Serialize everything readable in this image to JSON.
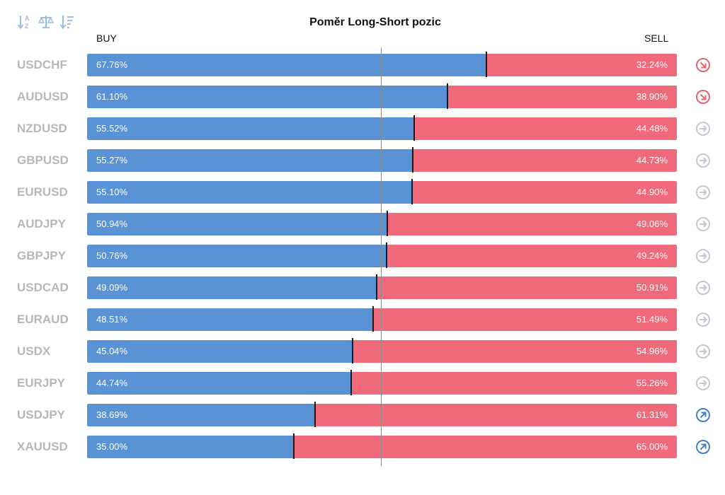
{
  "toolbar": {
    "buttons": [
      {
        "name": "sort-alphabetical-icon"
      },
      {
        "name": "balance-scale-icon"
      },
      {
        "name": "sort-descending-icon"
      }
    ]
  },
  "title": "Poměr Long-Short pozic",
  "buy_label": "BUY",
  "sell_label": "SELL",
  "colors": {
    "buy": "#5a93d5",
    "sell": "#f06a7b",
    "signal_down": "#e8616f",
    "signal_neutral": "#c2c8d0",
    "signal_up": "#3f7fc7",
    "symbol_text": "#b7b7b7"
  },
  "rows": [
    {
      "symbol": "USDCHF",
      "buy": "67.76%",
      "sell": "32.24%",
      "signal": "down"
    },
    {
      "symbol": "AUDUSD",
      "buy": "61.10%",
      "sell": "38.90%",
      "signal": "down"
    },
    {
      "symbol": "NZDUSD",
      "buy": "55.52%",
      "sell": "44.48%",
      "signal": "neutral"
    },
    {
      "symbol": "GBPUSD",
      "buy": "55.27%",
      "sell": "44.73%",
      "signal": "neutral"
    },
    {
      "symbol": "EURUSD",
      "buy": "55.10%",
      "sell": "44.90%",
      "signal": "neutral"
    },
    {
      "symbol": "AUDJPY",
      "buy": "50.94%",
      "sell": "49.06%",
      "signal": "neutral"
    },
    {
      "symbol": "GBPJPY",
      "buy": "50.76%",
      "sell": "49.24%",
      "signal": "neutral"
    },
    {
      "symbol": "USDCAD",
      "buy": "49.09%",
      "sell": "50.91%",
      "signal": "neutral"
    },
    {
      "symbol": "EURAUD",
      "buy": "48.51%",
      "sell": "51.49%",
      "signal": "neutral"
    },
    {
      "symbol": "USDX",
      "buy": "45.04%",
      "sell": "54.96%",
      "signal": "neutral"
    },
    {
      "symbol": "EURJPY",
      "buy": "44.74%",
      "sell": "55.26%",
      "signal": "neutral"
    },
    {
      "symbol": "USDJPY",
      "buy": "38.69%",
      "sell": "61.31%",
      "signal": "up"
    },
    {
      "symbol": "XAUUSD",
      "buy": "35.00%",
      "sell": "65.00%",
      "signal": "up"
    }
  ],
  "chart_data": {
    "type": "bar",
    "orientation": "horizontal",
    "stacked": true,
    "title": "Poměr Long-Short pozic",
    "categories": [
      "USDCHF",
      "AUDUSD",
      "NZDUSD",
      "GBPUSD",
      "EURUSD",
      "AUDJPY",
      "GBPJPY",
      "USDCAD",
      "EURAUD",
      "USDX",
      "EURJPY",
      "USDJPY",
      "XAUUSD"
    ],
    "series": [
      {
        "name": "BUY",
        "values": [
          67.76,
          61.1,
          55.52,
          55.27,
          55.1,
          50.94,
          50.76,
          49.09,
          48.51,
          45.04,
          44.74,
          38.69,
          35.0
        ]
      },
      {
        "name": "SELL",
        "values": [
          32.24,
          38.9,
          44.48,
          44.73,
          44.9,
          49.06,
          49.24,
          50.91,
          51.49,
          54.96,
          55.26,
          61.31,
          65.0
        ]
      }
    ],
    "xlim": [
      0,
      100
    ],
    "reference_line": 50,
    "grid": false
  }
}
